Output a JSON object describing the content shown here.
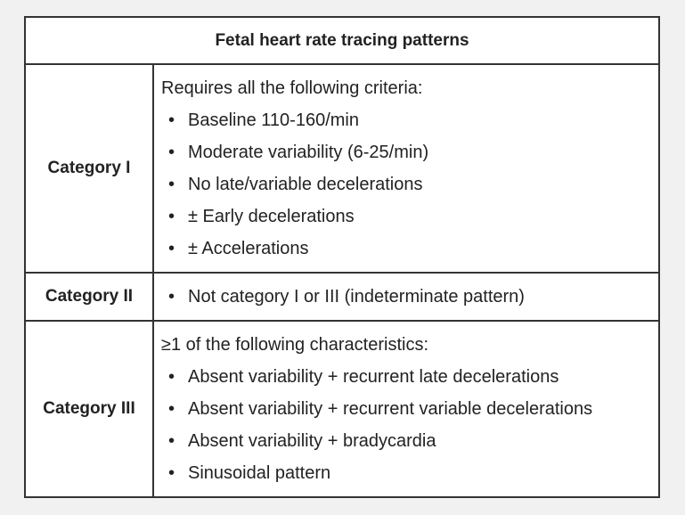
{
  "table": {
    "title": "Fetal heart rate tracing patterns",
    "rows": [
      {
        "label": "Category I",
        "intro": "Requires all the following criteria:",
        "items": [
          "Baseline 110-160/min",
          "Moderate variability (6-25/min)",
          "No late/variable decelerations",
          "± Early decelerations",
          "± Accelerations"
        ]
      },
      {
        "label": "Category II",
        "items": [
          "Not category I or III (indeterminate pattern)"
        ]
      },
      {
        "label": "Category III",
        "intro": "≥1 of the following characteristics:",
        "items": [
          "Absent variability + recurrent late decelerations",
          "Absent variability + recurrent variable decelerations",
          "Absent variability + bradycardia",
          "Sinusoidal pattern"
        ]
      }
    ]
  }
}
